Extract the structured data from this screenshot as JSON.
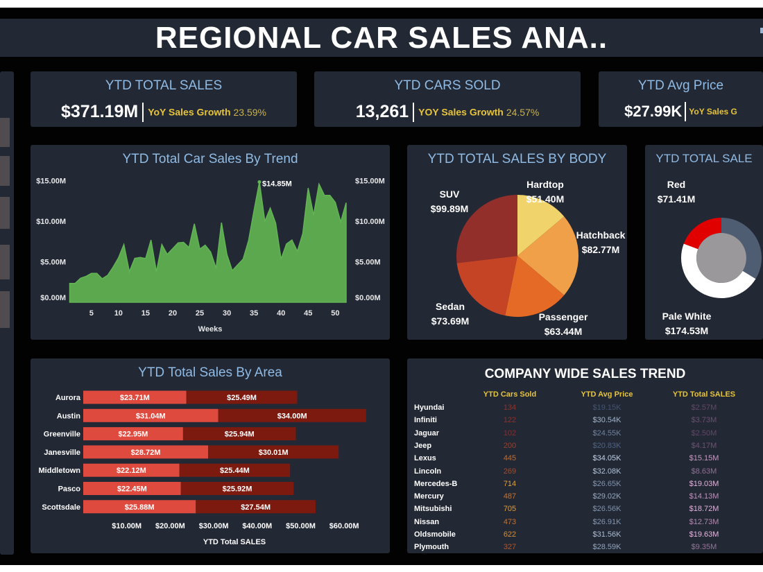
{
  "header": {
    "title": "REGIONAL CAR SALES ANA.."
  },
  "kpis": [
    {
      "title": "YTD TOTAL SALES",
      "value": "$371.19M",
      "growth_label": "YoY Sales Growth",
      "growth_value": "23.59%"
    },
    {
      "title": "YTD CARS SOLD",
      "value": "13,261",
      "growth_label": "YOY Sales Growth",
      "growth_value": "24.57%"
    },
    {
      "title": "YTD Avg Price",
      "value": "$27.99K",
      "growth_label": "YoY Sales G",
      "growth_value": ""
    }
  ],
  "colors": {
    "panel": "#232835",
    "title_blue": "#8fbbe4",
    "accent_yellow": "#e6c43a",
    "area_green": "#5ba84f",
    "bar_light": "#de4a3e",
    "bar_dark": "#7c1a0f"
  },
  "chart_data": [
    {
      "type": "area",
      "title": "YTD Total Car Sales By Trend",
      "xlabel": "Weeks",
      "ylabel": "",
      "x_ticks": [
        "5",
        "10",
        "15",
        "20",
        "25",
        "30",
        "35",
        "40",
        "45",
        "50"
      ],
      "y_ticks": [
        "$0.00M",
        "$5.00M",
        "$10.00M",
        "$15.00M"
      ],
      "ylim": [
        0,
        15
      ],
      "x": [
        1,
        2,
        3,
        4,
        5,
        6,
        7,
        8,
        9,
        10,
        11,
        12,
        13,
        14,
        15,
        16,
        17,
        18,
        19,
        20,
        21,
        22,
        23,
        24,
        25,
        26,
        27,
        28,
        29,
        30,
        31,
        32,
        33,
        34,
        35,
        36,
        37,
        38,
        39,
        40,
        41,
        42,
        43,
        44,
        45,
        46,
        47,
        48,
        49,
        50,
        51,
        52
      ],
      "values": [
        2.34,
        2.34,
        2.97,
        3.2,
        3.57,
        3.57,
        2.91,
        3.34,
        4.34,
        5.49,
        7.14,
        3.77,
        5.43,
        5.54,
        5.4,
        7.69,
        3.77,
        7.14,
        5.91,
        6.63,
        7.34,
        7.4,
        6.77,
        9.69,
        6.57,
        7.06,
        6.2,
        4.2,
        9.83,
        5.91,
        3.91,
        4.63,
        5.34,
        7.63,
        11.34,
        14.85,
        10.0,
        11.63,
        9.77,
        5.34,
        7.2,
        7.69,
        6.29,
        8.49,
        14.11,
        10.77,
        14.6,
        13.2,
        13.2,
        12.34,
        9.91,
        12.29
      ],
      "annotation": {
        "week": 36,
        "label": "$14.85M"
      },
      "grid": false
    },
    {
      "type": "pie",
      "title": "YTD TOTAL SALES BY BODY",
      "slices": [
        {
          "label": "Hardtop",
          "value_label": "$51.40M",
          "value": 51.4,
          "color": "#f0d36a"
        },
        {
          "label": "Hatchback",
          "value_label": "$82.77M",
          "value": 82.77,
          "color": "#f0a048"
        },
        {
          "label": "Passenger",
          "value_label": "$63.44M",
          "value": 63.44,
          "color": "#e56a25"
        },
        {
          "label": "Sedan",
          "value_label": "$73.69M",
          "value": 73.69,
          "color": "#c64426"
        },
        {
          "label": "SUV",
          "value_label": "$99.89M",
          "value": 99.89,
          "color": "#922f2a"
        }
      ]
    },
    {
      "type": "pie",
      "title": "YTD TOTAL SALE",
      "slices": [
        {
          "label": "Red",
          "value_label": "$71.41M",
          "value": 71.41,
          "color": "#e00000"
        },
        {
          "label": "Pale White",
          "value_label": "$174.53M",
          "value": 174.53,
          "color": "#ffffff"
        }
      ],
      "total": 371.19
    },
    {
      "type": "bar",
      "orientation": "horizontal",
      "stacked": true,
      "title": "YTD Total Sales By Area",
      "xlabel": "YTD Total SALES",
      "x_ticks": [
        "$10.00M",
        "$20.00M",
        "$30.00M",
        "$40.00M",
        "$50.00M",
        "$60.00M"
      ],
      "categories": [
        "Aurora",
        "Austin",
        "Greenville",
        "Janesville",
        "Middletown",
        "Pasco",
        "Scottsdale"
      ],
      "series": [
        {
          "values": [
            23.71,
            31.04,
            22.95,
            28.72,
            22.12,
            22.45,
            25.88
          ],
          "labels": [
            "$23.71M",
            "$31.04M",
            "$22.95M",
            "$28.72M",
            "$22.12M",
            "$22.45M",
            "$25.88M"
          ],
          "color": "#de4a3e"
        },
        {
          "values": [
            25.49,
            34.0,
            25.94,
            30.01,
            25.44,
            25.92,
            27.54
          ],
          "labels": [
            "$25.49M",
            "$34.00M",
            "$25.94M",
            "$30.01M",
            "$25.44M",
            "$25.92M",
            "$27.54M"
          ],
          "color": "#7c1a0f"
        }
      ]
    }
  ],
  "table": {
    "title": "COMPANY WIDE SALES TREND",
    "columns": [
      "YTD Cars Sold",
      "YTD Avg Price",
      "YTD Total SALES"
    ],
    "rows": [
      {
        "brand": "Hyundai",
        "cars": "134",
        "price": "$19.15K",
        "total": "$2.57M"
      },
      {
        "brand": "Infiniti",
        "cars": "122",
        "price": "$30.54K",
        "total": "$3.73M"
      },
      {
        "brand": "Jaguar",
        "cars": "102",
        "price": "$24.55K",
        "total": "$2.50M"
      },
      {
        "brand": "Jeep",
        "cars": "200",
        "price": "$20.83K",
        "total": "$4.17M"
      },
      {
        "brand": "Lexus",
        "cars": "445",
        "price": "$34.05K",
        "total": "$15.15M"
      },
      {
        "brand": "Lincoln",
        "cars": "269",
        "price": "$32.08K",
        "total": "$8.63M"
      },
      {
        "brand": "Mercedes-B",
        "cars": "714",
        "price": "$26.65K",
        "total": "$19.03M"
      },
      {
        "brand": "Mercury",
        "cars": "487",
        "price": "$29.02K",
        "total": "$14.13M"
      },
      {
        "brand": "Mitsubishi",
        "cars": "705",
        "price": "$26.56K",
        "total": "$18.72M"
      },
      {
        "brand": "Nissan",
        "cars": "473",
        "price": "$26.91K",
        "total": "$12.73M"
      },
      {
        "brand": "Oldsmobile",
        "cars": "622",
        "price": "$31.56K",
        "total": "$19.63M"
      },
      {
        "brand": "Plymouth",
        "cars": "327",
        "price": "$28.59K",
        "total": "$9.35M"
      }
    ]
  }
}
